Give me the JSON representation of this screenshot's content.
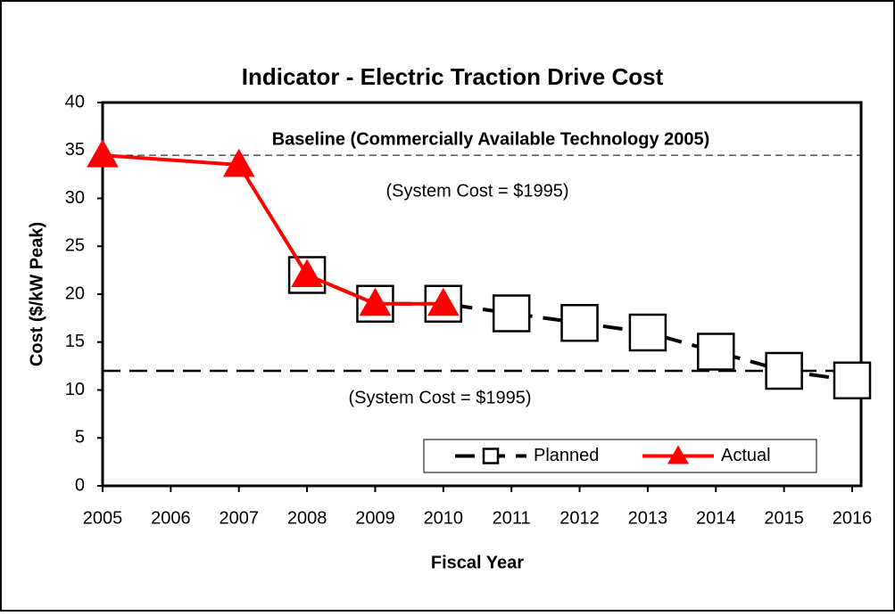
{
  "chart_data": {
    "type": "line",
    "title": "Indicator - Electric Traction Drive Cost",
    "x_label": "Fiscal Year",
    "y_label": "Cost ($/kW Peak)",
    "xlim": [
      2005,
      2016
    ],
    "xticks": [
      2005,
      2006,
      2007,
      2008,
      2009,
      2010,
      2011,
      2012,
      2013,
      2014,
      2015,
      2016
    ],
    "ylim": [
      0,
      40
    ],
    "yticks": [
      0,
      5,
      10,
      15,
      20,
      25,
      30,
      35,
      40
    ],
    "reference_lines": [
      34.5,
      12
    ],
    "annotations": [
      "Baseline (Commercially Available Technology 2005)",
      "(System Cost  = $1995)",
      "(System Cost  = $1995)"
    ],
    "legend": "bottom-right",
    "series": [
      {
        "name": "Planned",
        "color": "#000000",
        "marker": "square",
        "x": [
          2008,
          2009,
          2010,
          2011,
          2012,
          2013,
          2014,
          2015,
          2016
        ],
        "values": [
          22,
          19,
          19,
          18,
          17,
          16,
          14,
          12,
          11
        ]
      },
      {
        "name": "Actual",
        "color": "#ff0000",
        "marker": "triangle",
        "x": [
          2005,
          2007,
          2008,
          2009,
          2010
        ],
        "values": [
          34.5,
          33.5,
          22,
          19,
          19
        ]
      }
    ]
  }
}
